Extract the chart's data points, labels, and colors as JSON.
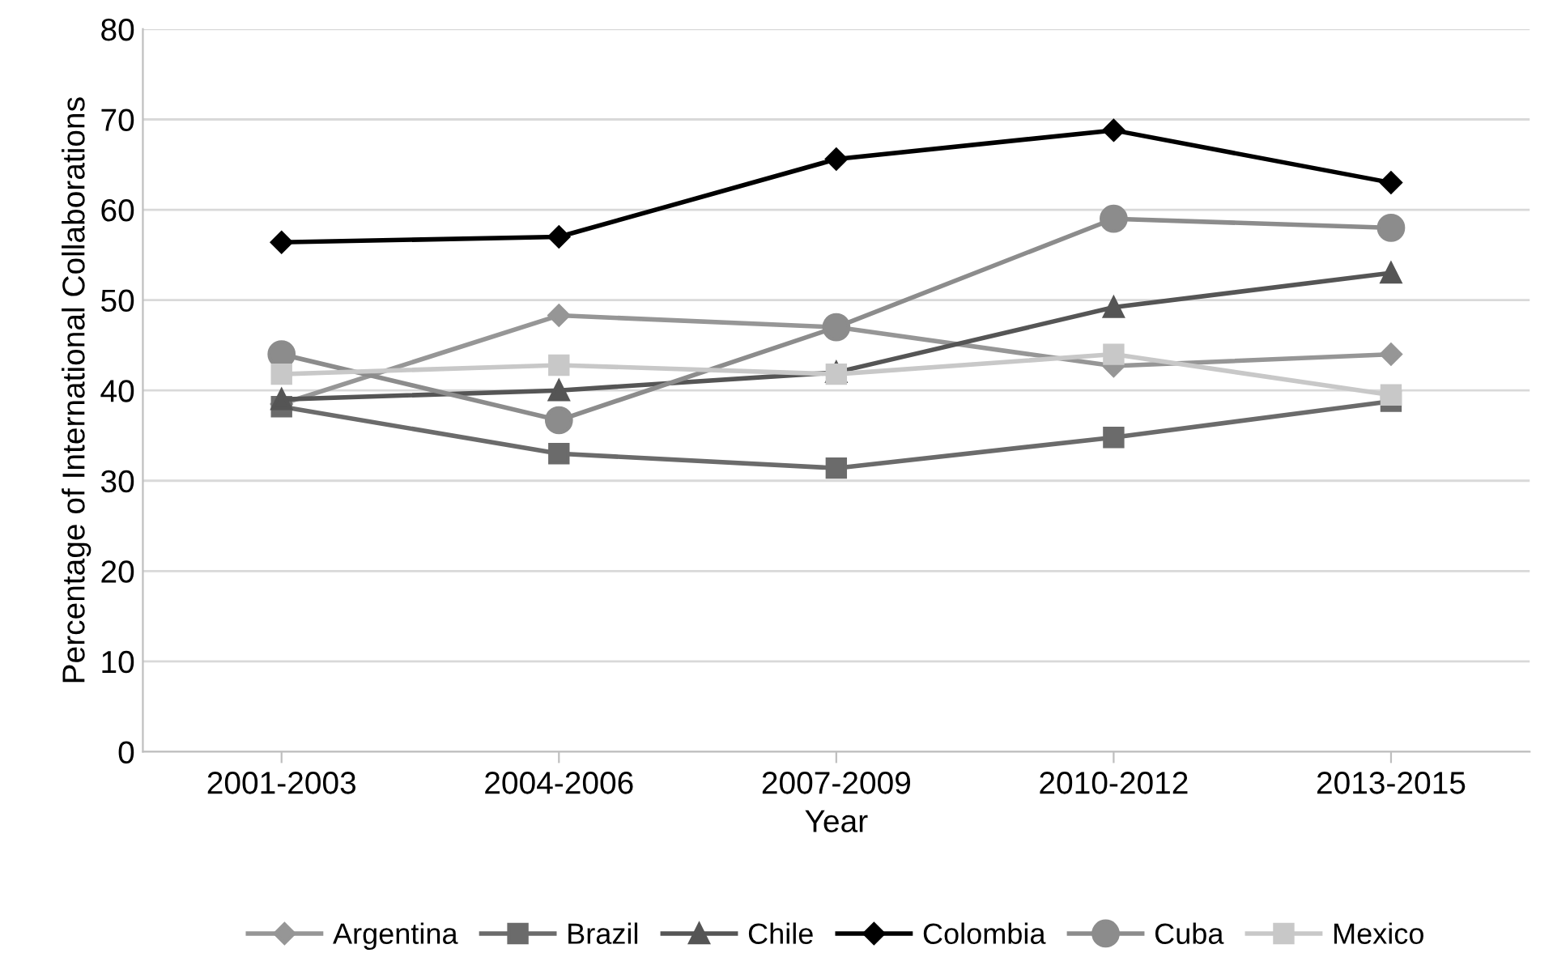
{
  "chart_data": {
    "type": "line",
    "xlabel": "Year",
    "ylabel": "Percentage of International Collaborations",
    "categories": [
      "2001-2003",
      "2004-2006",
      "2007-2009",
      "2010-2012",
      "2013-2015"
    ],
    "ylim": [
      0,
      80
    ],
    "yticks": [
      0,
      10,
      20,
      30,
      40,
      50,
      60,
      70,
      80
    ],
    "grid": "y",
    "legend": "bottom",
    "line_style": "solid",
    "series": [
      {
        "name": "Argentina",
        "color": "#969696",
        "marker": "diamond",
        "values": [
          38.5,
          48.3,
          47,
          42.7,
          44
        ]
      },
      {
        "name": "Brazil",
        "color": "#6b6b6b",
        "marker": "square",
        "values": [
          38.2,
          33,
          31.4,
          34.8,
          38.8
        ]
      },
      {
        "name": "Chile",
        "color": "#555555",
        "marker": "triangle",
        "values": [
          39,
          40,
          42,
          49.2,
          53
        ]
      },
      {
        "name": "Colombia",
        "color": "#000000",
        "marker": "diamond",
        "values": [
          56.4,
          57,
          65.6,
          68.8,
          63
        ]
      },
      {
        "name": "Cuba",
        "color": "#8c8c8c",
        "marker": "circle",
        "values": [
          44,
          36.7,
          47,
          59,
          58
        ]
      },
      {
        "name": "Mexico",
        "color": "#c8c8c8",
        "marker": "square",
        "values": [
          41.8,
          42.8,
          41.8,
          44,
          39.5
        ]
      }
    ]
  }
}
